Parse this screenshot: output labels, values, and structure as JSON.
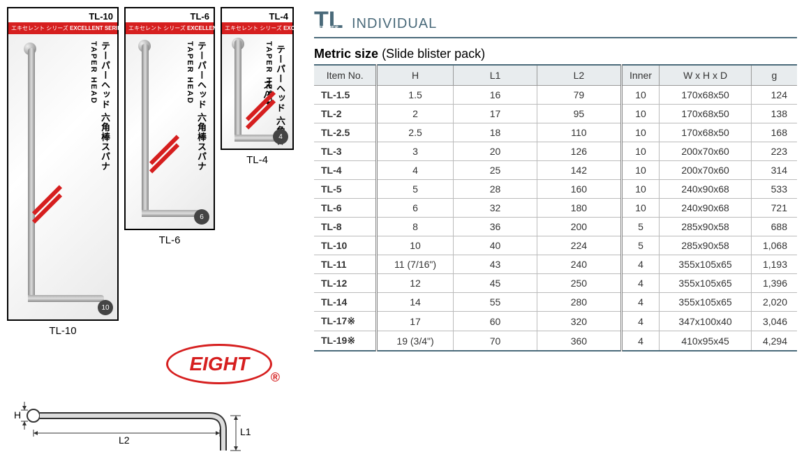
{
  "title": {
    "code": "TL",
    "label": "INDIVIDUAL"
  },
  "subtitle": {
    "bold": "Metric size",
    "paren": "(Slide blister pack)"
  },
  "columns": [
    "Item No.",
    "H",
    "L1",
    "L2",
    "Inner",
    "W x H x D",
    "g"
  ],
  "rows": [
    {
      "item": "TL-1.5",
      "h": "1.5",
      "l1": "16",
      "l2": "79",
      "inner": "10",
      "whd": "170x68x50",
      "g": "124"
    },
    {
      "item": "TL-2",
      "h": "2",
      "l1": "17",
      "l2": "95",
      "inner": "10",
      "whd": "170x68x50",
      "g": "138"
    },
    {
      "item": "TL-2.5",
      "h": "2.5",
      "l1": "18",
      "l2": "110",
      "inner": "10",
      "whd": "170x68x50",
      "g": "168"
    },
    {
      "item": "TL-3",
      "h": "3",
      "l1": "20",
      "l2": "126",
      "inner": "10",
      "whd": "200x70x60",
      "g": "223"
    },
    {
      "item": "TL-4",
      "h": "4",
      "l1": "25",
      "l2": "142",
      "inner": "10",
      "whd": "200x70x60",
      "g": "314"
    },
    {
      "item": "TL-5",
      "h": "5",
      "l1": "28",
      "l2": "160",
      "inner": "10",
      "whd": "240x90x68",
      "g": "533"
    },
    {
      "item": "TL-6",
      "h": "6",
      "l1": "32",
      "l2": "180",
      "inner": "10",
      "whd": "240x90x68",
      "g": "721"
    },
    {
      "item": "TL-8",
      "h": "8",
      "l1": "36",
      "l2": "200",
      "inner": "5",
      "whd": "285x90x58",
      "g": "688"
    },
    {
      "item": "TL-10",
      "h": "10",
      "l1": "40",
      "l2": "224",
      "inner": "5",
      "whd": "285x90x58",
      "g": "1,068"
    },
    {
      "item": "TL-11",
      "h": "11 (7/16\")",
      "l1": "43",
      "l2": "240",
      "inner": "4",
      "whd": "355x105x65",
      "g": "1,193"
    },
    {
      "item": "TL-12",
      "h": "12",
      "l1": "45",
      "l2": "250",
      "inner": "4",
      "whd": "355x105x65",
      "g": "1,396"
    },
    {
      "item": "TL-14",
      "h": "14",
      "l1": "55",
      "l2": "280",
      "inner": "4",
      "whd": "355x105x65",
      "g": "2,020"
    },
    {
      "item": "TL-17※",
      "h": "17",
      "l1": "60",
      "l2": "320",
      "inner": "4",
      "whd": "347x100x40",
      "g": "3,046"
    },
    {
      "item": "TL-19※",
      "h": "19 (3/4\")",
      "l1": "70",
      "l2": "360",
      "inner": "4",
      "whd": "410x95x45",
      "g": "4,294"
    }
  ],
  "products": [
    {
      "code": "TL-10",
      "badge": "10",
      "cls": "card-large",
      "label": "TL-10"
    },
    {
      "code": "TL-6",
      "badge": "6",
      "cls": "card-med",
      "label": "TL-6"
    },
    {
      "code": "TL-4",
      "badge": "4",
      "cls": "card-small",
      "label": "TL-4"
    }
  ],
  "card_text": {
    "excellent_jp": "エキセレント シリーズ",
    "excellent_en": "EXCELLENT SERIES",
    "vtext_jp": "テーパーヘッド 六角棒スパナ",
    "vtext_en": "TAPER HEAD"
  },
  "logo": "EIGHT",
  "diagram_labels": {
    "H": "H",
    "L1": "L1",
    "L2": "L2"
  },
  "colors": {
    "accent": "#4a6a7a",
    "brand_red": "#d61f1f",
    "header_bg": "#e8ecee"
  }
}
